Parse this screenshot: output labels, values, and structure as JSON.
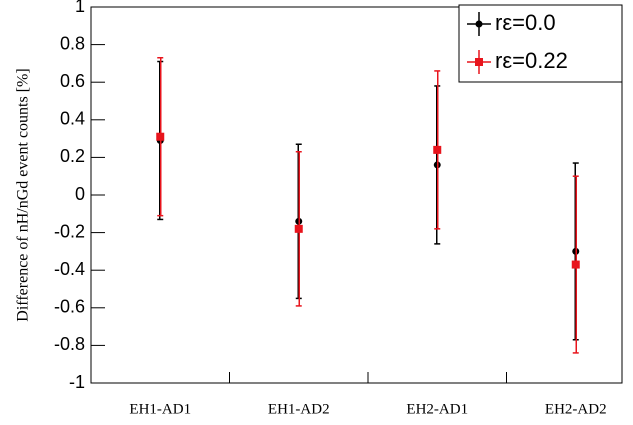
{
  "chart_data": {
    "type": "errorbar",
    "y_label": "Difference of nH/nGd event counts [%]",
    "categories": [
      "EH1-AD1",
      "EH1-AD2",
      "EH2-AD1",
      "EH2-AD2"
    ],
    "series": [
      {
        "name": "rε=0.0",
        "color": "#000000",
        "values": [
          0.29,
          -0.14,
          0.16,
          -0.3
        ],
        "errors": [
          0.42,
          0.41,
          0.42,
          0.47
        ]
      },
      {
        "name": "rε=0.22",
        "color": "#e8141c",
        "values": [
          0.31,
          -0.18,
          0.24,
          -0.37
        ],
        "errors": [
          0.42,
          0.41,
          0.42,
          0.47
        ]
      }
    ],
    "ylim": [
      -1,
      1
    ],
    "yticks": [
      -1,
      -0.8,
      -0.6,
      -0.4,
      -0.2,
      0,
      0.2,
      0.4,
      0.6,
      0.8,
      1
    ],
    "legend": "top-right"
  }
}
